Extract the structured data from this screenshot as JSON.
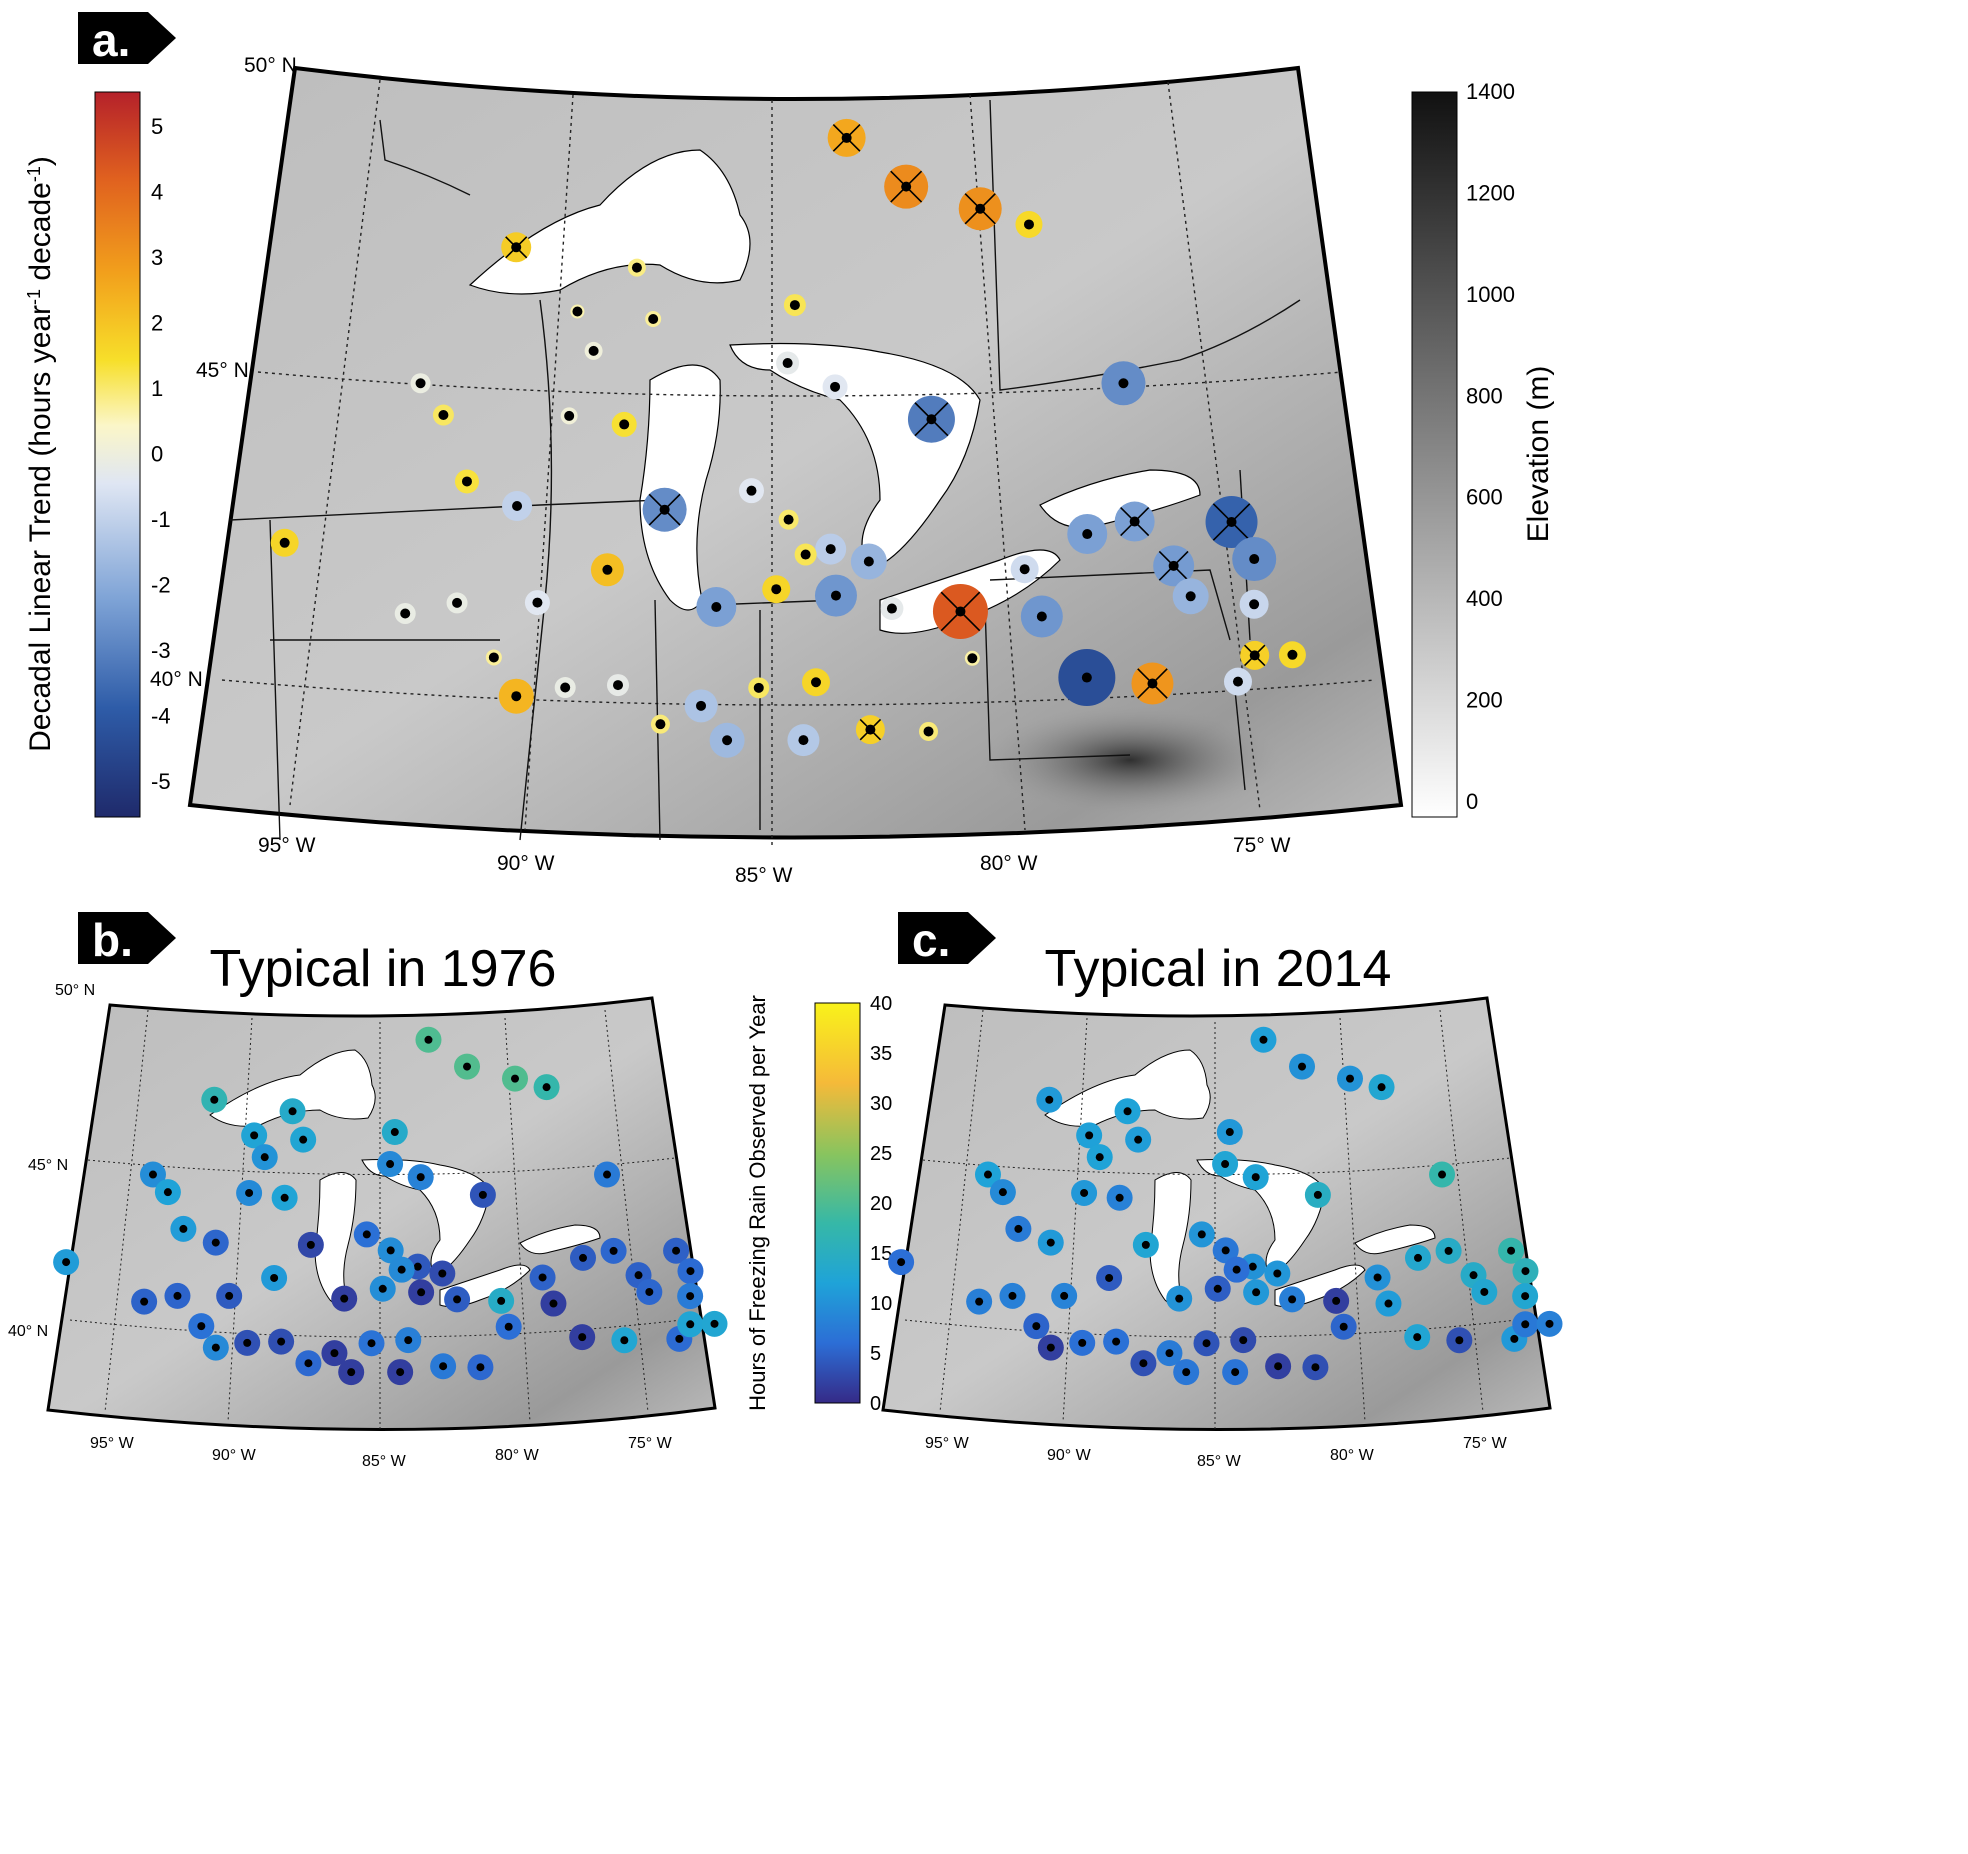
{
  "panels": {
    "a": {
      "tag": "a."
    },
    "b": {
      "tag": "b.",
      "title": "Typical in 1976"
    },
    "c": {
      "tag": "c.",
      "title": "Typical in 2014"
    }
  },
  "grid_labels": {
    "lat": [
      "50° N",
      "45° N",
      "40° N"
    ],
    "lon": [
      "95° W",
      "90° W",
      "85° W",
      "80° W",
      "75° W"
    ]
  },
  "trend_colorbar": {
    "label": "Decadal Linear Trend (hours year-1 decade-1)",
    "label_main": "Decadal Linear Trend (hours year",
    "label_sup1": "-1",
    "label_mid": " decade",
    "label_sup2": "-1",
    "label_end": ")",
    "ticks": [
      "5",
      "4",
      "3",
      "2",
      "1",
      "0",
      "-1",
      "-2",
      "-3",
      "-4",
      "-5"
    ],
    "colors": [
      "#1f2a6b",
      "#2e5ca8",
      "#7ea3d6",
      "#dfe6f3",
      "#fbf6c8",
      "#f7df2a",
      "#f2a01c",
      "#e0611f",
      "#b5212a"
    ]
  },
  "elevation_colorbar": {
    "label": "Elevation (m)",
    "ticks": [
      "1400",
      "1200",
      "1000",
      "800",
      "600",
      "400",
      "200",
      "0"
    ]
  },
  "hours_colorbar": {
    "label": "Hours of Freezing Rain Observed per Year",
    "ticks": [
      "40",
      "35",
      "30",
      "25",
      "20",
      "15",
      "10",
      "5",
      "0"
    ],
    "colors": [
      "#352a87",
      "#2c6ed6",
      "#1fa3d8",
      "#36b8a7",
      "#87c45f",
      "#f5ba39",
      "#f9f21a"
    ]
  },
  "station_values": {
    "trend_a": [
      {
        "lon": -91.9,
        "lat": 47.7,
        "v": 1.8,
        "sig": true
      },
      {
        "lon": -88.6,
        "lat": 47.2,
        "v": 0.6,
        "sig": false
      },
      {
        "lon": -90.1,
        "lat": 46.5,
        "v": 0.2,
        "sig": false
      },
      {
        "lon": -89.6,
        "lat": 45.8,
        "v": -0.6,
        "sig": false
      },
      {
        "lon": -88.1,
        "lat": 46.3,
        "v": 0.4,
        "sig": false
      },
      {
        "lon": -84.4,
        "lat": 46.5,
        "v": 1.0,
        "sig": false
      },
      {
        "lon": -94.0,
        "lat": 45.5,
        "v": -0.8,
        "sig": false
      },
      {
        "lon": -82.9,
        "lat": 49.4,
        "v": 2.6,
        "sig": true
      },
      {
        "lon": -81.3,
        "lat": 48.6,
        "v": 3.2,
        "sig": true
      },
      {
        "lon": -79.3,
        "lat": 48.3,
        "v": 3.1,
        "sig": true
      },
      {
        "lon": -78.0,
        "lat": 48.1,
        "v": 1.5,
        "sig": false
      },
      {
        "lon": -76.0,
        "lat": 45.5,
        "v": -3.2,
        "sig": false
      },
      {
        "lon": -81.0,
        "lat": 44.6,
        "v": -3.5,
        "sig": true
      },
      {
        "lon": -83.4,
        "lat": 45.1,
        "v": -1.3,
        "sig": false
      },
      {
        "lon": -84.6,
        "lat": 45.5,
        "v": -1.1,
        "sig": false
      },
      {
        "lon": -93.3,
        "lat": 44.9,
        "v": 0.9,
        "sig": false
      },
      {
        "lon": -88.7,
        "lat": 44.5,
        "v": 1.3,
        "sig": false
      },
      {
        "lon": -90.1,
        "lat": 44.7,
        "v": -0.5,
        "sig": false
      },
      {
        "lon": -92.5,
        "lat": 43.7,
        "v": 1.2,
        "sig": false
      },
      {
        "lon": -96.8,
        "lat": 43.0,
        "v": 1.6,
        "sig": false
      },
      {
        "lon": -91.2,
        "lat": 43.2,
        "v": -1.8,
        "sig": false
      },
      {
        "lon": -87.6,
        "lat": 43.0,
        "v": -3.2,
        "sig": true
      },
      {
        "lon": -85.5,
        "lat": 43.3,
        "v": -1.3,
        "sig": false
      },
      {
        "lon": -84.6,
        "lat": 42.8,
        "v": 0.8,
        "sig": false
      },
      {
        "lon": -83.6,
        "lat": 42.3,
        "v": -1.9,
        "sig": false
      },
      {
        "lon": -84.2,
        "lat": 42.2,
        "v": 1.0,
        "sig": false
      },
      {
        "lon": -82.7,
        "lat": 42.1,
        "v": -2.4,
        "sig": false
      },
      {
        "lon": -88.9,
        "lat": 42.0,
        "v": 2.1,
        "sig": false
      },
      {
        "lon": -90.5,
        "lat": 41.5,
        "v": -1.3,
        "sig": false
      },
      {
        "lon": -92.4,
        "lat": 41.6,
        "v": -0.9,
        "sig": false
      },
      {
        "lon": -93.6,
        "lat": 41.5,
        "v": -0.9,
        "sig": false
      },
      {
        "lon": -91.4,
        "lat": 40.6,
        "v": 0.4,
        "sig": false
      },
      {
        "lon": -90.8,
        "lat": 39.9,
        "v": 2.3,
        "sig": false
      },
      {
        "lon": -86.3,
        "lat": 41.3,
        "v": -2.8,
        "sig": false
      },
      {
        "lon": -84.9,
        "lat": 41.6,
        "v": 1.6,
        "sig": false
      },
      {
        "lon": -83.5,
        "lat": 41.5,
        "v": -3.0,
        "sig": false
      },
      {
        "lon": -82.2,
        "lat": 41.3,
        "v": -1.1,
        "sig": false
      },
      {
        "lon": -80.6,
        "lat": 41.3,
        "v": 4.3,
        "sig": true
      },
      {
        "lon": -79.0,
        "lat": 42.1,
        "v": -1.6,
        "sig": false
      },
      {
        "lon": -77.4,
        "lat": 42.8,
        "v": -2.8,
        "sig": false
      },
      {
        "lon": -76.2,
        "lat": 43.1,
        "v": -2.8,
        "sig": true
      },
      {
        "lon": -75.4,
        "lat": 42.4,
        "v": -2.9,
        "sig": true
      },
      {
        "lon": -73.8,
        "lat": 43.3,
        "v": -4.0,
        "sig": true
      },
      {
        "lon": -73.4,
        "lat": 42.7,
        "v": -3.2,
        "sig": false
      },
      {
        "lon": -73.6,
        "lat": 41.9,
        "v": -1.7,
        "sig": false
      },
      {
        "lon": -75.1,
        "lat": 41.9,
        "v": -2.4,
        "sig": false
      },
      {
        "lon": -74.3,
        "lat": 40.5,
        "v": -1.6,
        "sig": false
      },
      {
        "lon": -73.8,
        "lat": 41.0,
        "v": 1.7,
        "sig": true
      },
      {
        "lon": -72.9,
        "lat": 41.1,
        "v": 1.5,
        "sig": false
      },
      {
        "lon": -78.7,
        "lat": 41.3,
        "v": -3.0,
        "sig": false
      },
      {
        "lon": -77.8,
        "lat": 40.3,
        "v": -4.5,
        "sig": false
      },
      {
        "lon": -76.3,
        "lat": 40.3,
        "v": 3.0,
        "sig": true
      },
      {
        "lon": -85.3,
        "lat": 39.9,
        "v": 0.9,
        "sig": false
      },
      {
        "lon": -84.0,
        "lat": 40.0,
        "v": 1.6,
        "sig": false
      },
      {
        "lon": -86.6,
        "lat": 39.6,
        "v": -2.1,
        "sig": false
      },
      {
        "lon": -88.5,
        "lat": 40.0,
        "v": -1.0,
        "sig": false
      },
      {
        "lon": -89.7,
        "lat": 40.0,
        "v": -0.9,
        "sig": false
      },
      {
        "lon": -87.5,
        "lat": 39.3,
        "v": 0.7,
        "sig": false
      },
      {
        "lon": -86.0,
        "lat": 39.0,
        "v": -2.3,
        "sig": false
      },
      {
        "lon": -84.3,
        "lat": 39.0,
        "v": -2.0,
        "sig": false
      },
      {
        "lon": -82.8,
        "lat": 39.2,
        "v": 1.7,
        "sig": true
      },
      {
        "lon": -81.5,
        "lat": 39.2,
        "v": 0.7,
        "sig": false
      },
      {
        "lon": -80.4,
        "lat": 40.5,
        "v": 0.3,
        "sig": false
      }
    ]
  }
}
